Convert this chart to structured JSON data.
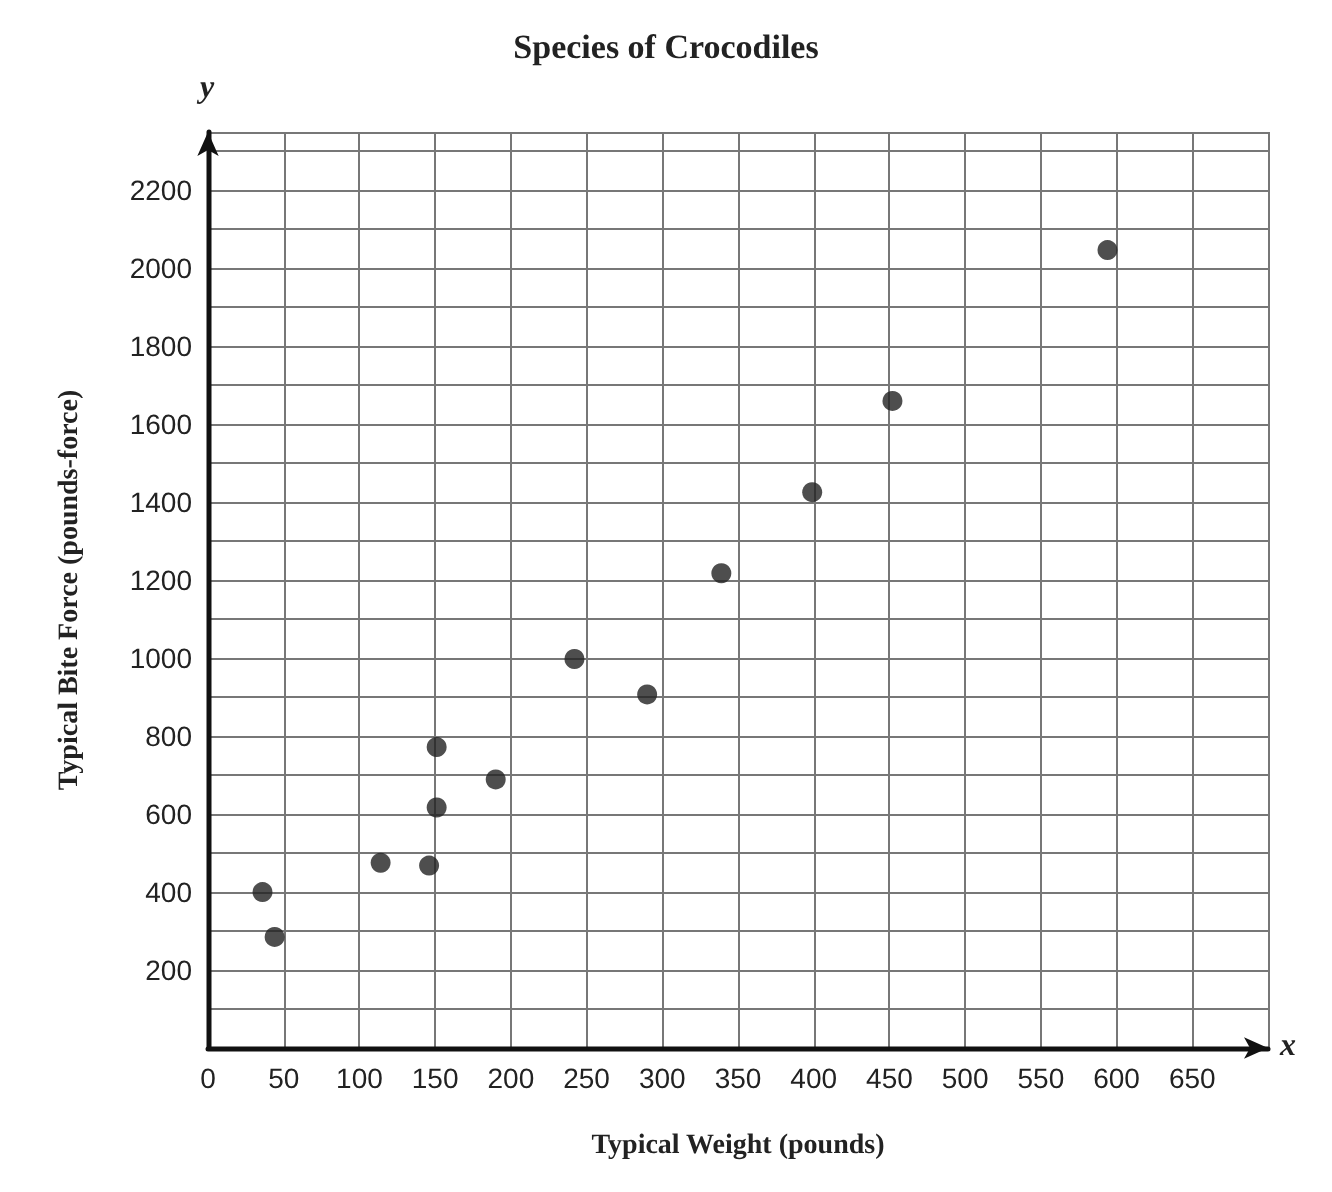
{
  "chart_data": {
    "type": "scatter",
    "title": "Species of Crocodiles",
    "xlabel": "Typical Weight (pounds)",
    "ylabel": "Typical Bite Force (pounds-force)",
    "annotations": [
      "y",
      "x"
    ],
    "x": [
      36,
      44,
      114,
      146,
      151,
      151,
      190,
      242,
      290,
      339,
      399,
      452,
      594
    ],
    "series": [
      {
        "color": "#222222",
        "values": [
          400,
          285,
          475,
          468,
          617,
          772,
          689,
          998,
          907,
          1218,
          1426,
          1660,
          2047
        ]
      }
    ],
    "xlim": [
      0,
      700
    ],
    "ylim": [
      0,
      2350
    ],
    "xticks": [
      0,
      50,
      100,
      150,
      200,
      250,
      300,
      350,
      400,
      450,
      500,
      550,
      600,
      650
    ],
    "yticks": [
      {
        "value": 100,
        "label": null
      },
      200,
      {
        "value": 300,
        "label": null
      },
      400,
      {
        "value": 500,
        "label": null
      },
      600,
      {
        "value": 700,
        "label": null
      },
      800,
      {
        "value": 900,
        "label": null
      },
      1000,
      {
        "value": 1100,
        "label": null
      },
      1200,
      {
        "value": 1300,
        "label": null
      },
      1400,
      {
        "value": 1500,
        "label": null
      },
      1600,
      {
        "value": 1700,
        "label": null
      },
      1800,
      {
        "value": 1900,
        "label": null
      },
      2000,
      {
        "value": 2100,
        "label": null
      },
      2200,
      {
        "value": 2300,
        "label": null
      }
    ],
    "grid": true,
    "marker": "circle"
  }
}
